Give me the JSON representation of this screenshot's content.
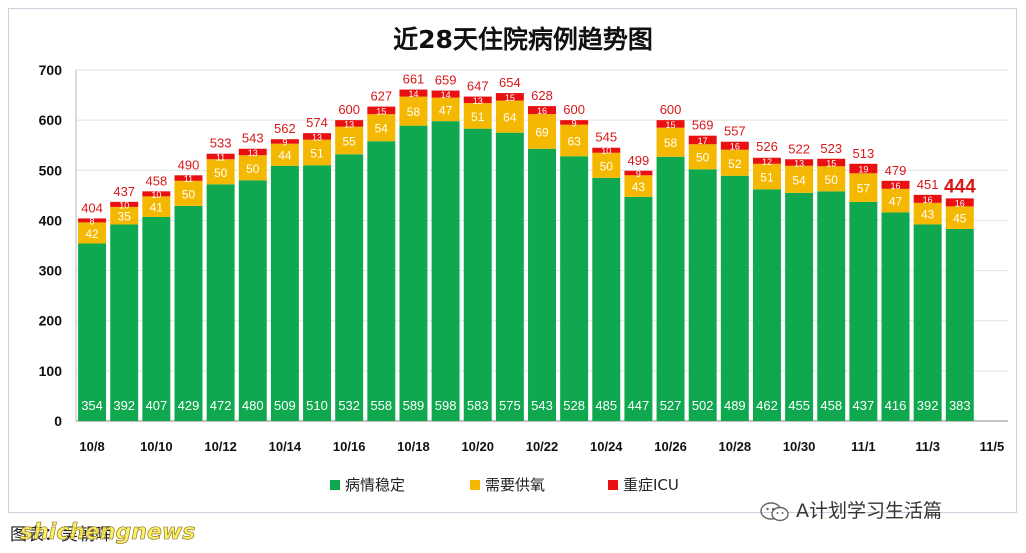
{
  "chart_data": {
    "type": "bar",
    "stacked": true,
    "title": "近28天住院病例趋势图",
    "ylim": [
      0,
      700
    ],
    "yticks": [
      "0",
      "100",
      "200",
      "300",
      "400",
      "500",
      "600",
      "700"
    ],
    "grid": true,
    "legend_position": "bottom",
    "categories": [
      "10/8",
      "10/9",
      "10/10",
      "10/11",
      "10/12",
      "10/13",
      "10/14",
      "10/15",
      "10/16",
      "10/17",
      "10/18",
      "10/19",
      "10/20",
      "10/21",
      "10/22",
      "10/23",
      "10/24",
      "10/25",
      "10/26",
      "10/27",
      "10/28",
      "10/29",
      "10/30",
      "10/31",
      "11/1",
      "11/2",
      "11/3",
      "11/4"
    ],
    "xtick_labels": [
      "10/8",
      "10/10",
      "10/12",
      "10/14",
      "10/16",
      "10/18",
      "10/20",
      "10/22",
      "10/24",
      "10/26",
      "10/28",
      "10/30",
      "11/1",
      "11/3",
      "11/5"
    ],
    "series": [
      {
        "name": "病情稳定",
        "color": "#0fa84f",
        "values": [
          354,
          392,
          407,
          429,
          472,
          480,
          509,
          510,
          532,
          558,
          589,
          598,
          583,
          575,
          543,
          528,
          485,
          447,
          527,
          502,
          489,
          462,
          455,
          458,
          437,
          416,
          392,
          383
        ]
      },
      {
        "name": "需要供氧",
        "color": "#f5b800",
        "values": [
          42,
          35,
          41,
          50,
          50,
          50,
          44,
          51,
          55,
          54,
          58,
          47,
          51,
          64,
          69,
          63,
          50,
          43,
          58,
          50,
          52,
          51,
          54,
          50,
          57,
          47,
          43,
          45
        ]
      },
      {
        "name": "重症ICU",
        "color": "#e81010",
        "values": [
          8,
          10,
          10,
          11,
          11,
          13,
          9,
          13,
          13,
          15,
          14,
          14,
          13,
          15,
          16,
          9,
          10,
          9,
          15,
          17,
          16,
          12,
          13,
          15,
          19,
          16,
          16,
          16
        ]
      }
    ],
    "totals": [
      404,
      437,
      458,
      490,
      533,
      543,
      562,
      574,
      600,
      627,
      661,
      659,
      647,
      654,
      628,
      600,
      545,
      499,
      600,
      569,
      557,
      526,
      522,
      523,
      513,
      479,
      451,
      444
    ]
  },
  "footer": {
    "credit": "图表：吴朝晖",
    "account": "A计划学习生活篇",
    "watermark": "shichengnews"
  },
  "colors": {
    "stable": "#0fa84f",
    "oxygen": "#f5b800",
    "icu": "#e81010",
    "total_label": "#d81818"
  }
}
